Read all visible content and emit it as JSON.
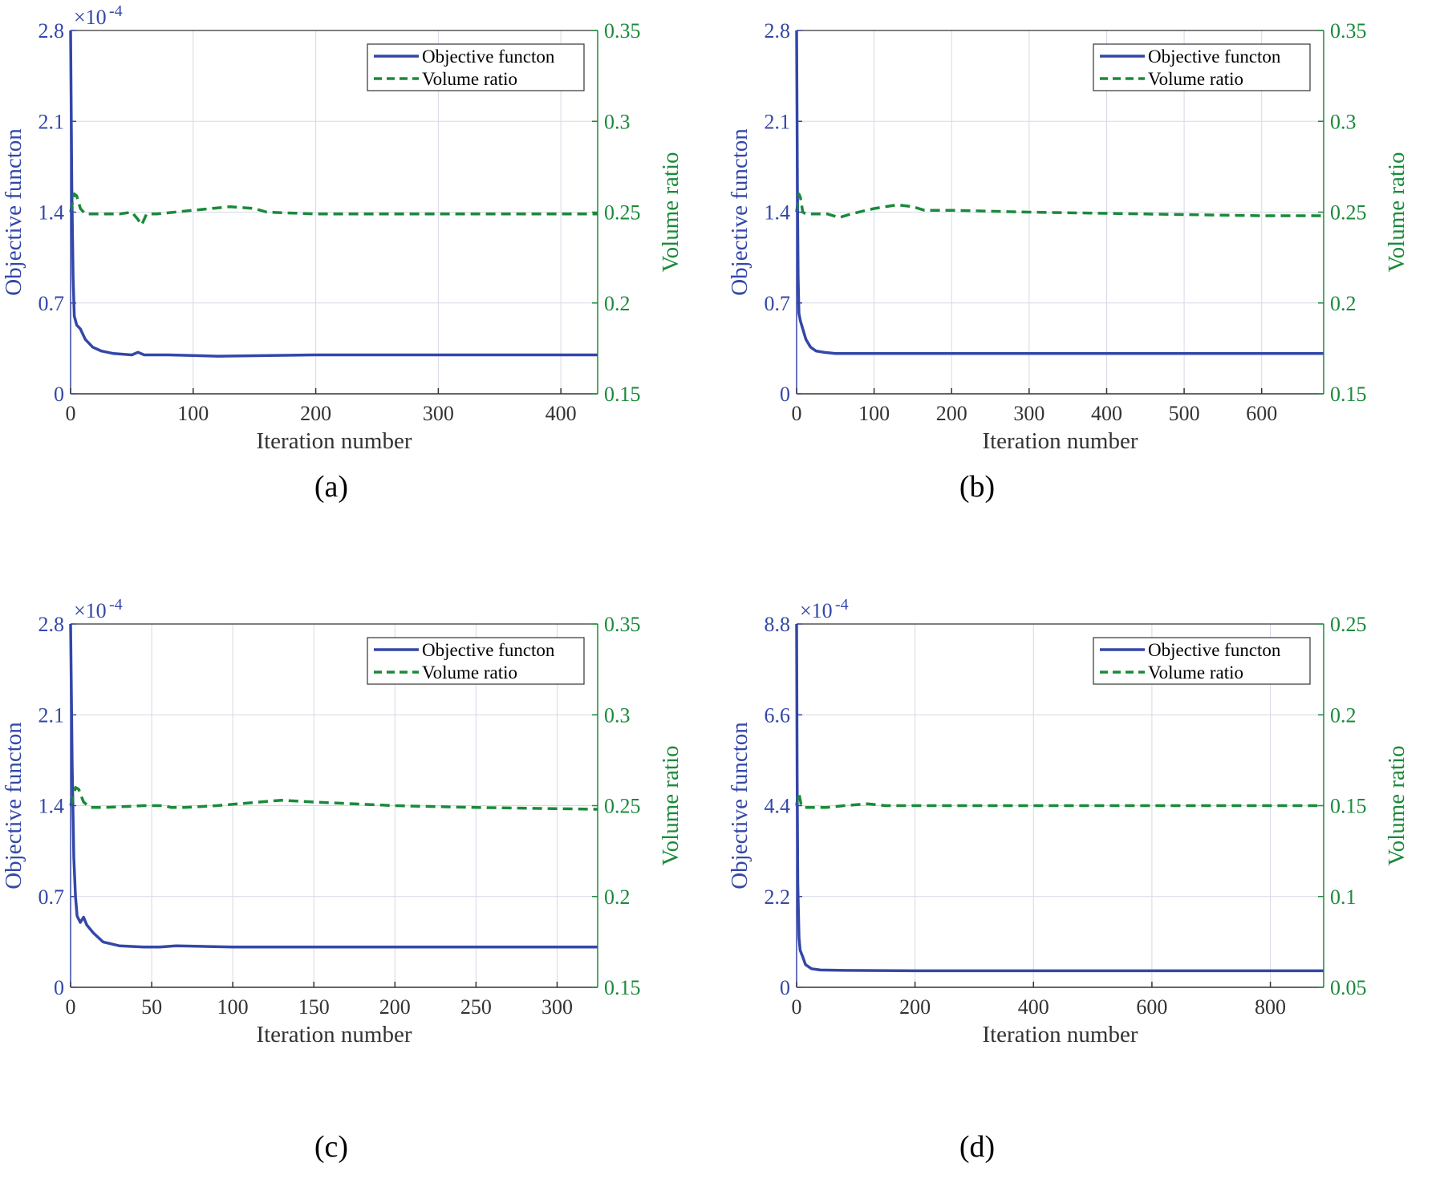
{
  "colors": {
    "objective": "#3347a8",
    "volume": "#1a8a3a",
    "grid": "#d6d9e6",
    "frame": "#333333"
  },
  "chart_data": [
    {
      "id": "a",
      "caption": "(a)",
      "type": "line",
      "xlabel": "Iteration number",
      "ylabel_left": "Objective functon",
      "ylabel_right": "Volume ratio",
      "exponent_label": "×10",
      "exponent_power": "-4",
      "xlim": [
        0,
        430
      ],
      "xticks": [
        0,
        100,
        200,
        300,
        400
      ],
      "ylim_left": [
        0,
        2.8
      ],
      "yticks_left": [
        "0",
        "0.7",
        "1.4",
        "2.1",
        "2.8"
      ],
      "ylim_right": [
        0.15,
        0.35
      ],
      "yticks_right": [
        "0.15",
        "0.2",
        "0.25",
        "0.3",
        "0.35"
      ],
      "legend": [
        "Objective functon",
        "Volume ratio"
      ],
      "series": [
        {
          "name": "Objective functon",
          "axis": "left",
          "style": "solid",
          "x": [
            0,
            1,
            2,
            3,
            5,
            8,
            12,
            18,
            25,
            35,
            50,
            55,
            60,
            80,
            120,
            200,
            300,
            430
          ],
          "y": [
            2.8,
            1.6,
            0.9,
            0.6,
            0.53,
            0.5,
            0.42,
            0.36,
            0.33,
            0.31,
            0.3,
            0.32,
            0.3,
            0.3,
            0.29,
            0.3,
            0.3,
            0.3
          ]
        },
        {
          "name": "Volume ratio",
          "axis": "right",
          "style": "dashed",
          "x": [
            0,
            3,
            5,
            8,
            12,
            20,
            40,
            50,
            55,
            58,
            62,
            70,
            100,
            130,
            150,
            160,
            200,
            300,
            430
          ],
          "y": [
            0.25,
            0.26,
            0.259,
            0.252,
            0.249,
            0.249,
            0.249,
            0.25,
            0.246,
            0.243,
            0.249,
            0.249,
            0.251,
            0.253,
            0.252,
            0.25,
            0.249,
            0.249,
            0.249
          ]
        }
      ]
    },
    {
      "id": "b",
      "caption": "(b)",
      "type": "line",
      "xlabel": "Iteration number",
      "ylabel_left": "Objective functon",
      "ylabel_right": "Volume ratio",
      "exponent_label": "",
      "exponent_power": "",
      "xlim": [
        0,
        680
      ],
      "xticks": [
        0,
        100,
        200,
        300,
        400,
        500,
        600
      ],
      "ylim_left": [
        0,
        2.8
      ],
      "yticks_left": [
        "0",
        "0.7",
        "1.4",
        "2.1",
        "2.8"
      ],
      "ylim_right": [
        0.15,
        0.35
      ],
      "yticks_right": [
        "0.15",
        "0.2",
        "0.25",
        "0.3",
        "0.35"
      ],
      "legend": [
        "Objective functon",
        "Volume ratio"
      ],
      "series": [
        {
          "name": "Objective functon",
          "axis": "left",
          "style": "solid",
          "x": [
            0,
            1,
            2,
            3,
            5,
            8,
            12,
            18,
            25,
            35,
            50,
            80,
            150,
            300,
            500,
            680
          ],
          "y": [
            2.8,
            1.6,
            0.9,
            0.62,
            0.56,
            0.5,
            0.42,
            0.36,
            0.33,
            0.32,
            0.31,
            0.31,
            0.31,
            0.31,
            0.31,
            0.31
          ]
        },
        {
          "name": "Volume ratio",
          "axis": "right",
          "style": "dashed",
          "x": [
            0,
            3,
            5,
            8,
            12,
            20,
            40,
            55,
            70,
            100,
            130,
            150,
            165,
            200,
            300,
            450,
            600,
            680
          ],
          "y": [
            0.25,
            0.26,
            0.258,
            0.25,
            0.249,
            0.249,
            0.249,
            0.247,
            0.249,
            0.252,
            0.254,
            0.253,
            0.251,
            0.251,
            0.25,
            0.249,
            0.248,
            0.248
          ]
        }
      ]
    },
    {
      "id": "c",
      "caption": "(c)",
      "type": "line",
      "xlabel": "Iteration number",
      "ylabel_left": "Objective functon",
      "ylabel_right": "Volume ratio",
      "exponent_label": "×10",
      "exponent_power": "-4",
      "xlim": [
        0,
        325
      ],
      "xticks": [
        0,
        50,
        100,
        150,
        200,
        250,
        300
      ],
      "ylim_left": [
        0,
        2.8
      ],
      "yticks_left": [
        "0",
        "0.7",
        "1.4",
        "2.1",
        "2.8"
      ],
      "ylim_right": [
        0.15,
        0.35
      ],
      "yticks_right": [
        "0.15",
        "0.2",
        "0.25",
        "0.3",
        "0.35"
      ],
      "legend": [
        "Objective functon",
        "Volume ratio"
      ],
      "series": [
        {
          "name": "Objective functon",
          "axis": "left",
          "style": "solid",
          "x": [
            0,
            1,
            2,
            3,
            4,
            6,
            8,
            10,
            14,
            20,
            30,
            45,
            55,
            65,
            100,
            200,
            325
          ],
          "y": [
            2.8,
            1.7,
            1.0,
            0.7,
            0.55,
            0.5,
            0.54,
            0.48,
            0.42,
            0.35,
            0.32,
            0.31,
            0.31,
            0.32,
            0.31,
            0.31,
            0.31
          ]
        },
        {
          "name": "Volume ratio",
          "axis": "right",
          "style": "dashed",
          "x": [
            0,
            3,
            5,
            8,
            12,
            20,
            45,
            58,
            62,
            70,
            90,
            130,
            150,
            200,
            250,
            325
          ],
          "y": [
            0.25,
            0.26,
            0.259,
            0.252,
            0.249,
            0.249,
            0.25,
            0.25,
            0.249,
            0.249,
            0.25,
            0.253,
            0.252,
            0.25,
            0.249,
            0.248
          ]
        }
      ]
    },
    {
      "id": "d",
      "caption": "(d)",
      "type": "line",
      "xlabel": "Iteration number",
      "ylabel_left": "Objective functon",
      "ylabel_right": "Volume ratio",
      "exponent_label": "×10",
      "exponent_power": "-4",
      "xlim": [
        0,
        890
      ],
      "xticks": [
        0,
        200,
        400,
        600,
        800
      ],
      "ylim_left": [
        0,
        8.8
      ],
      "yticks_left": [
        "0",
        "2.2",
        "4.4",
        "6.6",
        "8.8"
      ],
      "ylim_right": [
        0.05,
        0.25
      ],
      "yticks_right": [
        "0.05",
        "0.1",
        "0.15",
        "0.2",
        "0.25"
      ],
      "legend": [
        "Objective functon",
        "Volume ratio"
      ],
      "series": [
        {
          "name": "Objective functon",
          "axis": "left",
          "style": "solid",
          "x": [
            0,
            1,
            2,
            4,
            6,
            10,
            15,
            25,
            40,
            80,
            200,
            500,
            890
          ],
          "y": [
            8.8,
            5.0,
            2.5,
            1.2,
            0.9,
            0.75,
            0.55,
            0.45,
            0.42,
            0.41,
            0.4,
            0.4,
            0.4
          ]
        },
        {
          "name": "Volume ratio",
          "axis": "right",
          "style": "dashed",
          "x": [
            0,
            3,
            5,
            8,
            12,
            25,
            50,
            80,
            120,
            150,
            200,
            400,
            600,
            890
          ],
          "y": [
            0.15,
            0.157,
            0.155,
            0.15,
            0.149,
            0.149,
            0.149,
            0.15,
            0.151,
            0.15,
            0.15,
            0.15,
            0.15,
            0.15
          ]
        }
      ]
    }
  ]
}
